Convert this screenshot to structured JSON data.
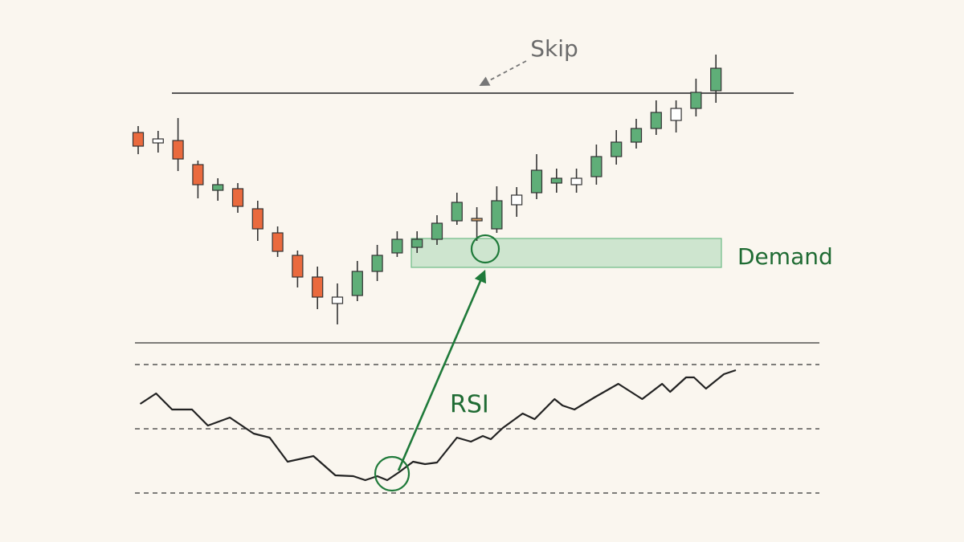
{
  "chart_data": {
    "type": "candlestick",
    "open": [
      285,
      272,
      275,
      245,
      213,
      215,
      190,
      160,
      132,
      105,
      72,
      82,
      112,
      135,
      142,
      152,
      175,
      175,
      165,
      195,
      210,
      222,
      220,
      230,
      255,
      273,
      290,
      300,
      315,
      337
    ],
    "close": [
      268,
      277,
      252,
      220,
      220,
      193,
      165,
      137,
      105,
      80,
      80,
      112,
      132,
      152,
      152,
      172,
      198,
      178,
      200,
      207,
      238,
      228,
      228,
      255,
      273,
      290,
      310,
      315,
      335,
      365
    ],
    "high": [
      293,
      287,
      303,
      250,
      228,
      222,
      200,
      168,
      138,
      118,
      97,
      125,
      145,
      162,
      162,
      182,
      210,
      192,
      218,
      217,
      258,
      240,
      240,
      270,
      288,
      302,
      325,
      325,
      352,
      382
    ],
    "low": [
      258,
      260,
      237,
      203,
      200,
      185,
      150,
      130,
      92,
      65,
      46,
      75,
      100,
      130,
      135,
      145,
      170,
      150,
      160,
      180,
      202,
      210,
      210,
      220,
      245,
      265,
      282,
      285,
      305,
      322
    ],
    "colors": [
      "#ea6a3e",
      "#ffffff",
      "#ea6a3e",
      "#ea6a3e",
      "#5fae78",
      "#ea6a3e",
      "#ea6a3e",
      "#ea6a3e",
      "#ea6a3e",
      "#ea6a3e",
      "#ffffff",
      "#5fae78",
      "#5fae78",
      "#5fae78",
      "#5fae78",
      "#5fae78",
      "#5fae78",
      "#d9a066",
      "#5fae78",
      "#ffffff",
      "#5fae78",
      "#5fae78",
      "#ffffff",
      "#5fae78",
      "#5fae78",
      "#5fae78",
      "#5fae78",
      "#ffffff",
      "#5fae78",
      "#5fae78"
    ],
    "ylim": [
      40,
      400
    ],
    "resistance": 334,
    "demand_zone": [
      117,
      153
    ],
    "annotations": {
      "skip": "Skip",
      "demand": "Demand",
      "rsi": "RSI"
    },
    "rsi": {
      "x": [
        0.1,
        0.9,
        1.7,
        2.7,
        3.5,
        4.6,
        5.8,
        6.6,
        7.5,
        8.8,
        9.9,
        10.8,
        11.4,
        12.0,
        12.5,
        13.1,
        13.8,
        14.4,
        15.0,
        16.0,
        16.7,
        17.3,
        17.7,
        18.3,
        19.3,
        19.9,
        20.9,
        21.3,
        21.9,
        22.9,
        24.1,
        25.3,
        26.3,
        26.7,
        27.5,
        27.9,
        28.5,
        29.4,
        30.0
      ],
      "values": [
        57.75,
        61,
        56,
        56,
        51,
        53.5,
        48.5,
        47.25,
        39.75,
        41.5,
        35.5,
        35.25,
        34,
        35.25,
        34,
        36.5,
        39.75,
        39,
        39.5,
        47.25,
        46,
        47.75,
        46.75,
        50.25,
        54.75,
        53,
        59.25,
        57.25,
        56,
        59.75,
        64,
        59.25,
        64,
        61.5,
        66,
        66,
        62.5,
        67,
        68.25
      ],
      "ylim": [
        25,
        78
      ],
      "levels": [
        30,
        50,
        70
      ]
    }
  }
}
